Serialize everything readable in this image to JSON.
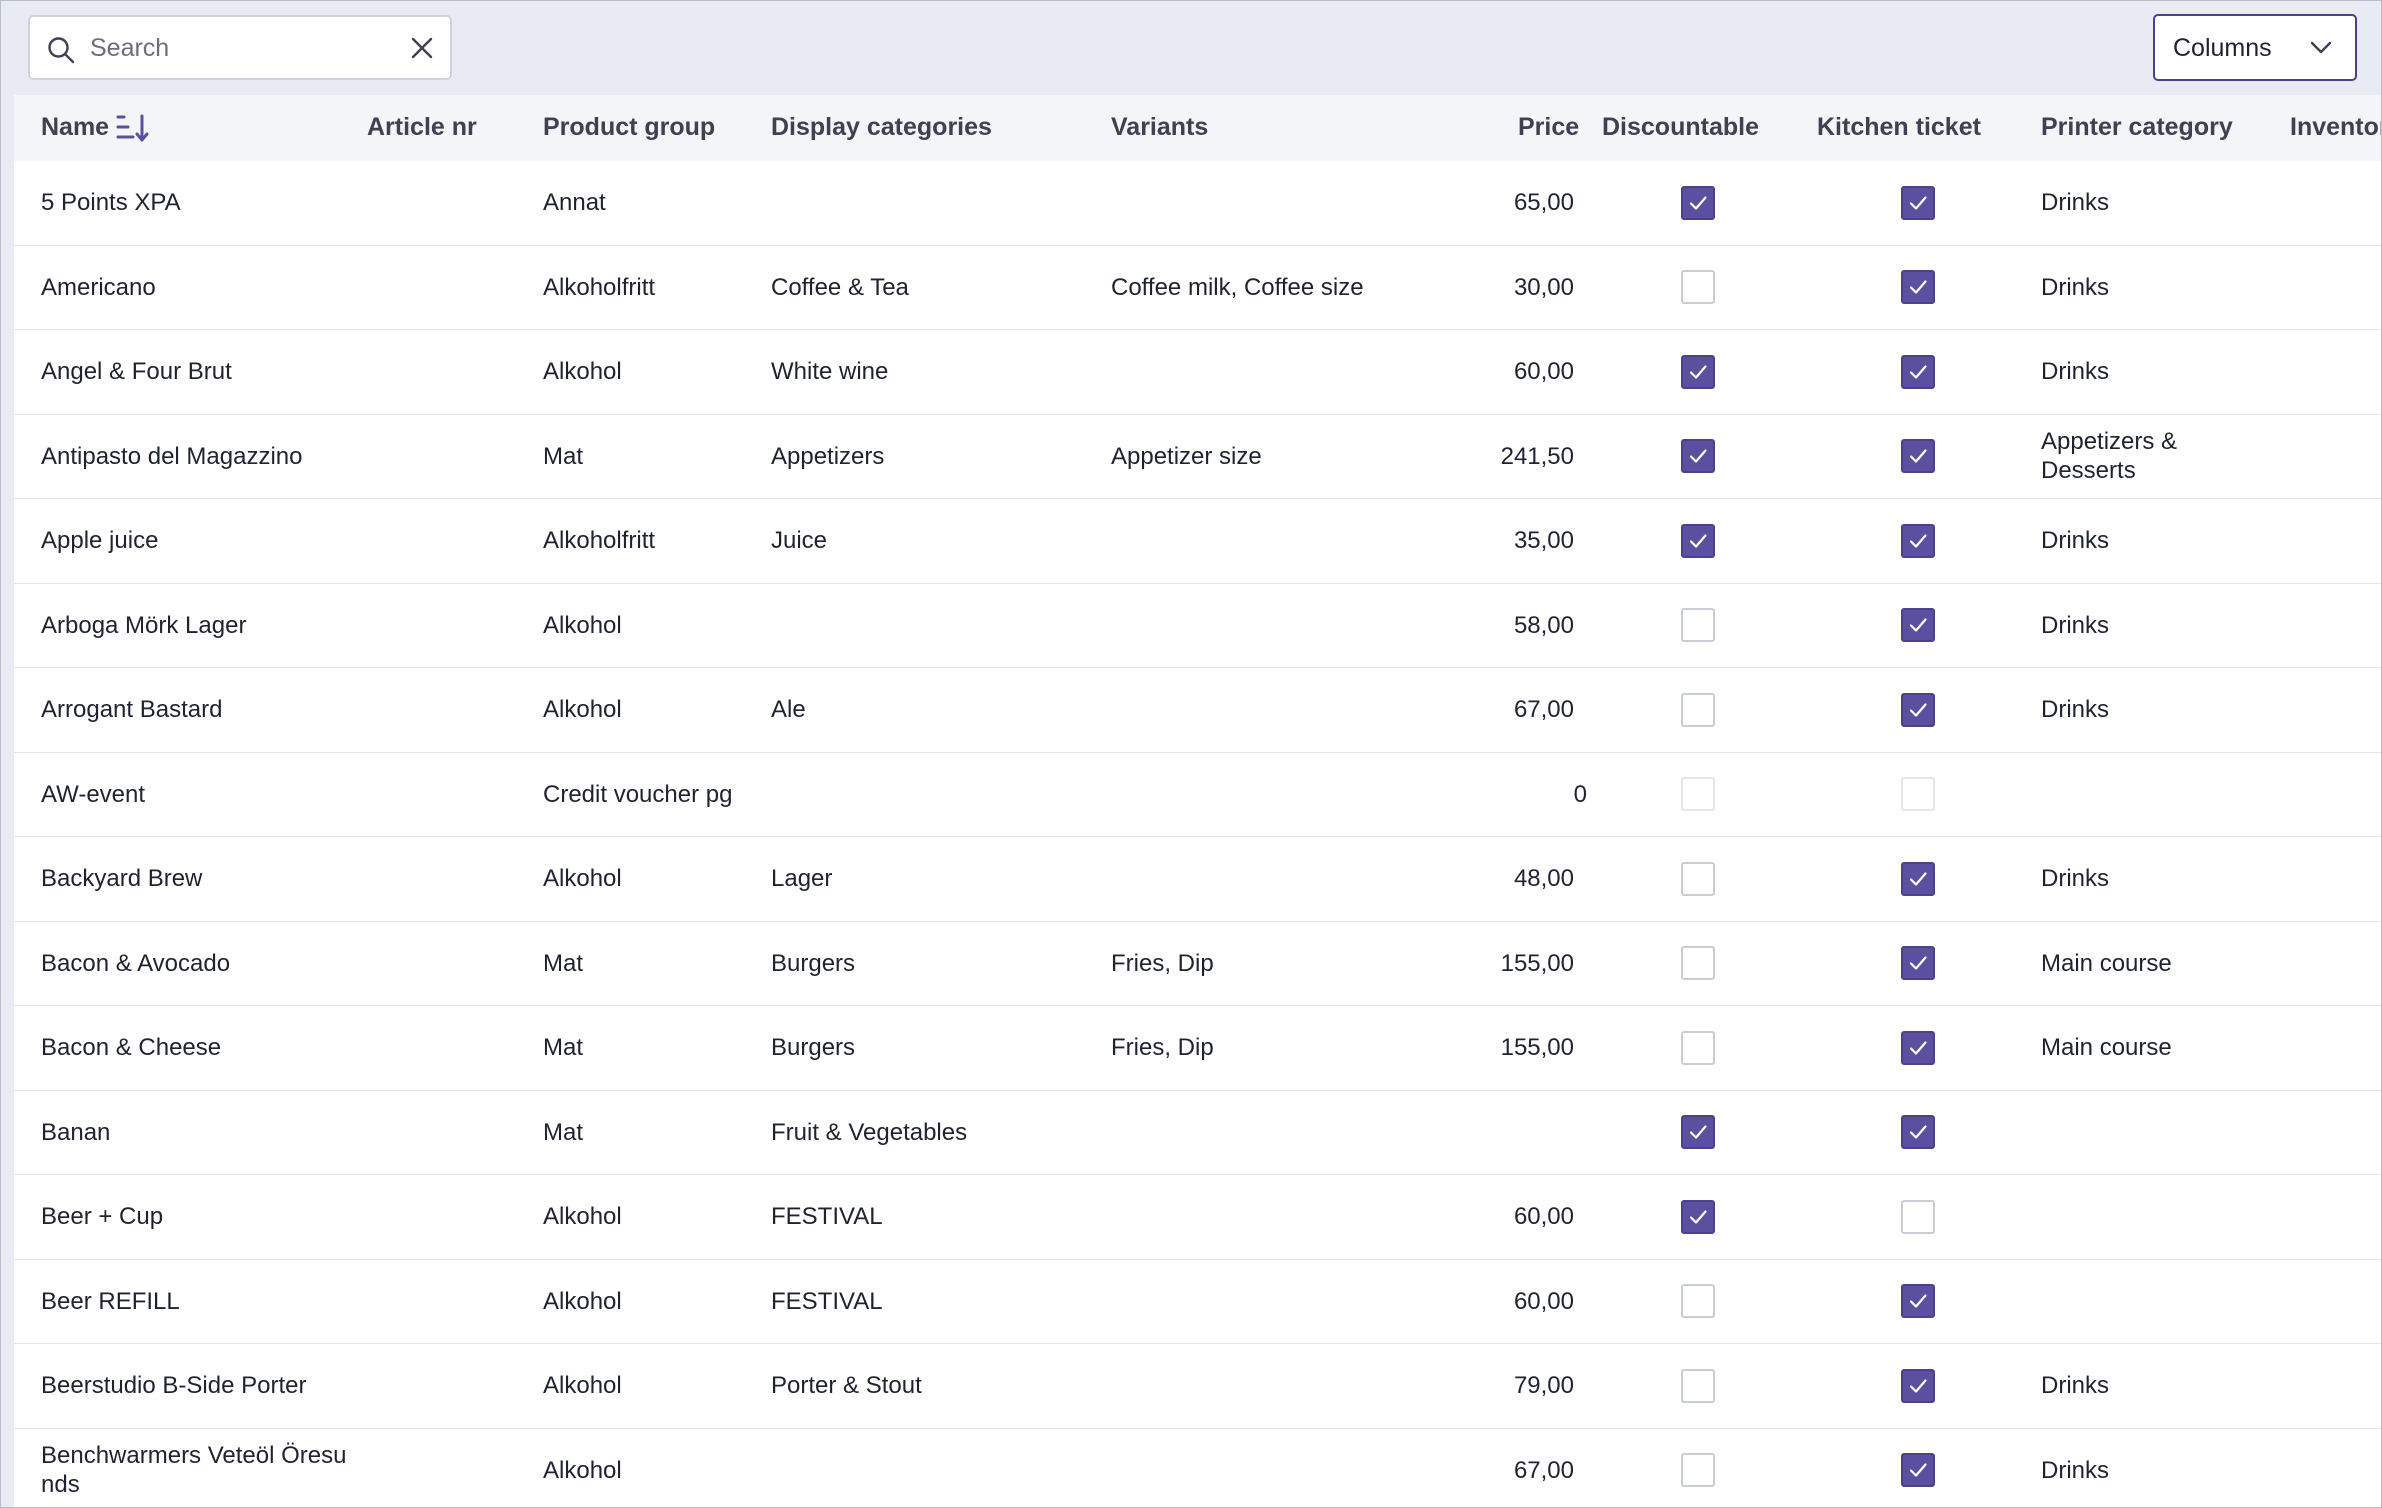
{
  "toolbar": {
    "search_placeholder": "Search",
    "search_value": "",
    "columns_label": "Columns"
  },
  "table": {
    "headers": {
      "name": "Name",
      "article_nr": "Article nr",
      "product_group": "Product group",
      "display_categories": "Display categories",
      "variants": "Variants",
      "price": "Price",
      "discountable": "Discountable",
      "kitchen_ticket": "Kitchen ticket",
      "printer_category": "Printer category",
      "inventory": "Inventor"
    },
    "sort": {
      "column": "Name",
      "direction": "descending"
    },
    "rows": [
      {
        "name": "5 Points XPA",
        "article_nr": "",
        "product_group": "Annat",
        "display_categories": "",
        "variants": "",
        "price": "65,00",
        "discountable": "checked",
        "kitchen_ticket": "checked",
        "printer_category": "Drinks"
      },
      {
        "name": "Americano",
        "article_nr": "",
        "product_group": "Alkoholfritt",
        "display_categories": "Coffee & Tea",
        "variants": "Coffee milk, Coffee size",
        "price": "30,00",
        "discountable": "unchecked",
        "kitchen_ticket": "checked",
        "printer_category": "Drinks"
      },
      {
        "name": "Angel & Four Brut",
        "article_nr": "",
        "product_group": "Alkohol",
        "display_categories": "White wine",
        "variants": "",
        "price": "60,00",
        "discountable": "checked",
        "kitchen_ticket": "checked",
        "printer_category": "Drinks"
      },
      {
        "name": "Antipasto del Magazzino",
        "article_nr": "",
        "product_group": "Mat",
        "display_categories": "Appetizers",
        "variants": "Appetizer size",
        "price": "241,50",
        "discountable": "checked",
        "kitchen_ticket": "checked",
        "printer_category": "Appetizers & Desserts"
      },
      {
        "name": "Apple juice",
        "article_nr": "",
        "product_group": "Alkoholfritt",
        "display_categories": "Juice",
        "variants": "",
        "price": "35,00",
        "discountable": "checked",
        "kitchen_ticket": "checked",
        "printer_category": "Drinks"
      },
      {
        "name": "Arboga Mörk Lager",
        "article_nr": "",
        "product_group": "Alkohol",
        "display_categories": "",
        "variants": "",
        "price": "58,00",
        "discountable": "unchecked",
        "kitchen_ticket": "checked",
        "printer_category": "Drinks"
      },
      {
        "name": "Arrogant Bastard",
        "article_nr": "",
        "product_group": "Alkohol",
        "display_categories": "Ale",
        "variants": "",
        "price": "67,00",
        "discountable": "unchecked",
        "kitchen_ticket": "checked",
        "printer_category": "Drinks"
      },
      {
        "name": "AW-event",
        "article_nr": "",
        "product_group": "Credit voucher pg",
        "display_categories": "",
        "variants": "",
        "price": "0",
        "discountable": "disabled",
        "kitchen_ticket": "disabled",
        "printer_category": ""
      },
      {
        "name": "Backyard Brew",
        "article_nr": "",
        "product_group": "Alkohol",
        "display_categories": "Lager",
        "variants": "",
        "price": "48,00",
        "discountable": "unchecked",
        "kitchen_ticket": "checked",
        "printer_category": "Drinks"
      },
      {
        "name": "Bacon & Avocado",
        "article_nr": "",
        "product_group": "Mat",
        "display_categories": "Burgers",
        "variants": "Fries, Dip",
        "price": "155,00",
        "discountable": "unchecked",
        "kitchen_ticket": "checked",
        "printer_category": "Main course"
      },
      {
        "name": "Bacon & Cheese",
        "article_nr": "",
        "product_group": "Mat",
        "display_categories": "Burgers",
        "variants": "Fries, Dip",
        "price": "155,00",
        "discountable": "unchecked",
        "kitchen_ticket": "checked",
        "printer_category": "Main course"
      },
      {
        "name": "Banan",
        "article_nr": "",
        "product_group": "Mat",
        "display_categories": "Fruit & Vegetables",
        "variants": "",
        "price": "",
        "discountable": "checked",
        "kitchen_ticket": "checked",
        "printer_category": ""
      },
      {
        "name": "Beer + Cup",
        "article_nr": "",
        "product_group": "Alkohol",
        "display_categories": "FESTIVAL",
        "variants": "",
        "price": "60,00",
        "discountable": "checked",
        "kitchen_ticket": "unchecked",
        "printer_category": ""
      },
      {
        "name": "Beer REFILL",
        "article_nr": "",
        "product_group": "Alkohol",
        "display_categories": "FESTIVAL",
        "variants": "",
        "price": "60,00",
        "discountable": "unchecked",
        "kitchen_ticket": "checked",
        "printer_category": ""
      },
      {
        "name": "Beerstudio B-Side Porter",
        "article_nr": "",
        "product_group": "Alkohol",
        "display_categories": "Porter & Stout",
        "variants": "",
        "price": "79,00",
        "discountable": "unchecked",
        "kitchen_ticket": "checked",
        "printer_category": "Drinks"
      },
      {
        "name": "Benchwarmers Veteöl Öresu nds",
        "article_nr": "",
        "product_group": "Alkohol",
        "display_categories": "",
        "variants": "",
        "price": "67,00",
        "discountable": "unchecked",
        "kitchen_ticket": "checked",
        "printer_category": "Drinks"
      }
    ]
  },
  "colors": {
    "accent": "#5b4f9f",
    "header_bg": "#f4f5f8",
    "page_bg": "#e8ebf3"
  },
  "icons": {
    "search": "search-icon",
    "clear": "close-icon",
    "columns_dropdown": "chevron-down-icon",
    "sort": "sort-descending-icon",
    "checkbox_checked": "check-icon"
  }
}
